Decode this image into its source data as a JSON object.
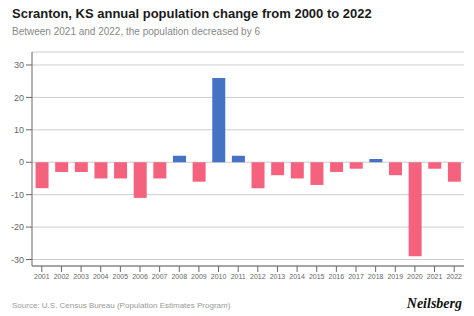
{
  "chart_data": {
    "type": "bar",
    "title": "Scranton, KS annual population change from 2000 to 2022",
    "subtitle": "Between 2021 and 2022, the population decreased by 6",
    "annotations": [
      "Source: U.S. Census Bureau (Population Estimates Program)",
      "Neilsberg"
    ],
    "categories": [
      "2001",
      "2002",
      "2003",
      "2004",
      "2005",
      "2006",
      "2007",
      "2008",
      "2009",
      "2010",
      "2011",
      "2012",
      "2013",
      "2014",
      "2015",
      "2016",
      "2017",
      "2018",
      "2019",
      "2020",
      "2021",
      "2022"
    ],
    "values": [
      -8,
      -3,
      -3,
      -5,
      -5,
      -11,
      -5,
      2,
      -6,
      26,
      2,
      -8,
      -4,
      -5,
      -7,
      -3,
      -2,
      1,
      -4,
      -29,
      -2,
      -6
    ],
    "colors": [
      "#F4627D",
      "#F4627D",
      "#F4627D",
      "#F4627D",
      "#F4627D",
      "#F4627D",
      "#F4627D",
      "#4472C4",
      "#F4627D",
      "#4472C4",
      "#4472C4",
      "#F4627D",
      "#F4627D",
      "#F4627D",
      "#F4627D",
      "#F4627D",
      "#F4627D",
      "#4472C4",
      "#F4627D",
      "#F4627D",
      "#F4627D",
      "#F4627D"
    ],
    "ylim": [
      -32,
      34
    ],
    "yticks": [
      -30,
      -20,
      -10,
      0,
      10,
      20,
      30
    ],
    "grid": true
  }
}
